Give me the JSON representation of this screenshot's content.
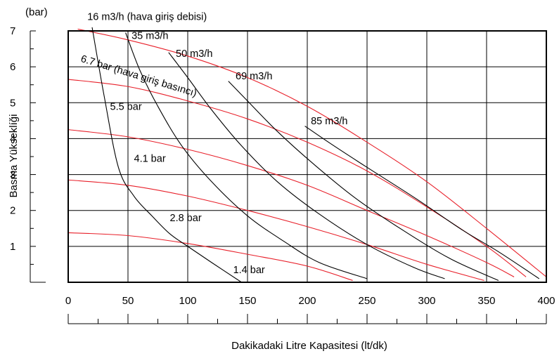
{
  "chart_data": {
    "type": "line",
    "ylabel": "Basma Yükseklíği",
    "yunit": "(bar)",
    "xlabel": "Dakikadaki Litre Kapasitesi (lt/dk)",
    "xlim": [
      0,
      400
    ],
    "ylim": [
      0,
      7
    ],
    "xticks": [
      0,
      50,
      100,
      150,
      200,
      250,
      300,
      350,
      400
    ],
    "yticks": [
      1,
      2,
      3,
      4,
      5,
      6,
      7
    ],
    "grid": true,
    "xminor_step": 25,
    "colors": {
      "pressure": "#e8202a",
      "flow": "#000000",
      "frame": "#000000",
      "grid": "#000000"
    },
    "pressure_series_title": "6.7 bar (hava giriş basıncı)",
    "flow_series_title": "16 m3/h (hava giriş debisi)",
    "pressure_curves": [
      {
        "name": "6.7 bar",
        "points": [
          [
            8,
            7.05
          ],
          [
            50,
            6.75
          ],
          [
            100,
            6.3
          ],
          [
            150,
            5.7
          ],
          [
            200,
            4.9
          ],
          [
            250,
            3.9
          ],
          [
            300,
            2.8
          ],
          [
            350,
            1.5
          ],
          [
            400,
            0.15
          ]
        ]
      },
      {
        "name": "5.5 bar",
        "points": [
          [
            0,
            5.65
          ],
          [
            50,
            5.45
          ],
          [
            100,
            5.05
          ],
          [
            150,
            4.55
          ],
          [
            200,
            3.9
          ],
          [
            250,
            3.1
          ],
          [
            300,
            2.1
          ],
          [
            350,
            1.0
          ],
          [
            383,
            0.15
          ]
        ]
      },
      {
        "name": "4.1 bar",
        "points": [
          [
            0,
            4.25
          ],
          [
            50,
            4.05
          ],
          [
            100,
            3.7
          ],
          [
            150,
            3.25
          ],
          [
            200,
            2.7
          ],
          [
            250,
            2.0
          ],
          [
            300,
            1.3
          ],
          [
            350,
            0.55
          ],
          [
            373,
            0.15
          ]
        ]
      },
      {
        "name": "2.8 bar",
        "points": [
          [
            0,
            2.85
          ],
          [
            50,
            2.7
          ],
          [
            100,
            2.4
          ],
          [
            150,
            2.0
          ],
          [
            200,
            1.55
          ],
          [
            250,
            1.05
          ],
          [
            300,
            0.5
          ],
          [
            348,
            0.05
          ]
        ]
      },
      {
        "name": "1.4 bar",
        "points": [
          [
            0,
            1.38
          ],
          [
            50,
            1.3
          ],
          [
            100,
            1.08
          ],
          [
            150,
            0.78
          ],
          [
            200,
            0.45
          ],
          [
            238,
            0.05
          ]
        ]
      }
    ],
    "flow_curves": [
      {
        "name": "16 m3/h",
        "points": [
          [
            20,
            7.1
          ],
          [
            30,
            5.2
          ],
          [
            42,
            3.2
          ],
          [
            55,
            2.4
          ],
          [
            70,
            1.85
          ],
          [
            85,
            1.35
          ],
          [
            100,
            1.0
          ],
          [
            120,
            0.55
          ],
          [
            145,
            0.0
          ]
        ]
      },
      {
        "name": "35 m3/h",
        "points": [
          [
            48,
            6.95
          ],
          [
            60,
            5.9
          ],
          [
            75,
            4.9
          ],
          [
            95,
            3.8
          ],
          [
            120,
            2.8
          ],
          [
            150,
            1.85
          ],
          [
            180,
            1.15
          ],
          [
            210,
            0.55
          ],
          [
            250,
            0.1
          ]
        ]
      },
      {
        "name": "50 m3/h",
        "points": [
          [
            84,
            6.4
          ],
          [
            100,
            5.7
          ],
          [
            120,
            4.8
          ],
          [
            145,
            3.8
          ],
          [
            175,
            2.8
          ],
          [
            210,
            1.9
          ],
          [
            250,
            1.05
          ],
          [
            290,
            0.4
          ],
          [
            315,
            0.1
          ]
        ]
      },
      {
        "name": "69 m3/h",
        "points": [
          [
            134,
            5.6
          ],
          [
            150,
            5.05
          ],
          [
            175,
            4.2
          ],
          [
            205,
            3.3
          ],
          [
            240,
            2.35
          ],
          [
            280,
            1.45
          ],
          [
            320,
            0.65
          ],
          [
            360,
            0.05
          ]
        ]
      },
      {
        "name": "85 m3/h",
        "points": [
          [
            198,
            4.35
          ],
          [
            220,
            3.85
          ],
          [
            250,
            3.2
          ],
          [
            290,
            2.35
          ],
          [
            330,
            1.45
          ],
          [
            360,
            0.85
          ],
          [
            394,
            0.1
          ]
        ]
      }
    ],
    "annotations": [
      {
        "text": "16 m3/h (hava giriş debisi)",
        "x": 16,
        "y": 7.3,
        "rotate": 0
      },
      {
        "text": "35 m3/h",
        "x": 53,
        "y": 6.78,
        "rotate": 0
      },
      {
        "text": "50 m3/h",
        "x": 90,
        "y": 6.28,
        "rotate": 0
      },
      {
        "text": "69 m3/h",
        "x": 140,
        "y": 5.65,
        "rotate": 0
      },
      {
        "text": "85 m3/h",
        "x": 203,
        "y": 4.4,
        "rotate": 0
      },
      {
        "text": "6.7 bar (hava giriş basıncı)",
        "x": 10,
        "y": 6.15,
        "rotate": 17
      },
      {
        "text": "5.5 bar",
        "x": 35,
        "y": 4.8,
        "rotate": 0
      },
      {
        "text": "4.1 bar",
        "x": 55,
        "y": 3.35,
        "rotate": 0
      },
      {
        "text": "2.8 bar",
        "x": 85,
        "y": 1.7,
        "rotate": 0
      },
      {
        "text": "1.4 bar",
        "x": 138,
        "y": 0.25,
        "rotate": 0
      }
    ]
  }
}
